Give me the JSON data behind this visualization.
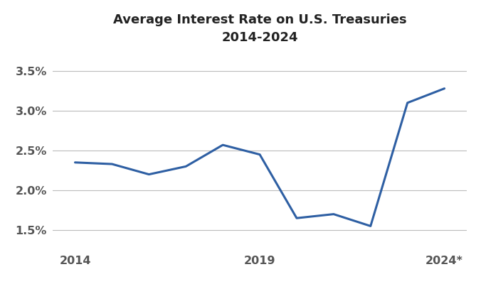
{
  "title_line1": "Average Interest Rate on U.S. Treasuries",
  "title_line2": "2014-2024",
  "years": [
    2014,
    2015,
    2016,
    2017,
    2018,
    2019,
    2020,
    2021,
    2022,
    2023,
    2024
  ],
  "x_labels": [
    "2014",
    "",
    "",
    "",
    "",
    "2019",
    "",
    "",
    "",
    "",
    "2024*"
  ],
  "values": [
    0.0235,
    0.0233,
    0.022,
    0.023,
    0.0257,
    0.0245,
    0.0165,
    0.017,
    0.0155,
    0.031,
    0.0328
  ],
  "line_color": "#2E5FA3",
  "line_width": 2.2,
  "yticks": [
    0.015,
    0.02,
    0.025,
    0.03,
    0.035
  ],
  "ytick_labels": [
    "1.5%",
    "2.0%",
    "2.5%",
    "3.0%",
    "3.5%"
  ],
  "ylim": [
    0.0125,
    0.0375
  ],
  "xlim": [
    2013.4,
    2024.6
  ],
  "grid_color": "#bbbbbb",
  "background_color": "#ffffff",
  "tick_label_color": "#555555",
  "title_fontsize": 13,
  "tick_fontsize": 11.5
}
